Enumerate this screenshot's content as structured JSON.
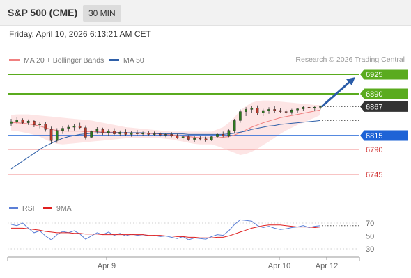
{
  "header": {
    "symbol": "S&P 500 (CME)",
    "interval": "30 MIN"
  },
  "datetime": "Friday, April 10, 2026 6:13:21 AM CET",
  "legend": {
    "ma20": "MA 20 + Bollinger Bands",
    "ma50": "MA 50",
    "ma20_color": "#f08080",
    "ma50_color": "#2e5fa8"
  },
  "copyright": "Research © 2026 Trading Central",
  "rsi_legend": {
    "rsi": "RSI",
    "ma9": "9MA",
    "rsi_color": "#5b7fd6",
    "ma9_color": "#e02020"
  },
  "levels": [
    {
      "value": 6925,
      "label": "6925",
      "type": "resistance",
      "color": "#5aab1e"
    },
    {
      "value": 6890,
      "label": "6890",
      "type": "resistance",
      "color": "#5aab1e"
    },
    {
      "value": 6867,
      "label": "6867",
      "type": "last-price",
      "color": "#333333"
    },
    {
      "value": 6815,
      "label": "6815",
      "type": "pivot",
      "color": "#1e63d6"
    },
    {
      "value": 6790,
      "label": "6790",
      "type": "support",
      "color": "#e05050"
    },
    {
      "value": 6745,
      "label": "6745",
      "type": "support",
      "color": "#e05050"
    }
  ],
  "rsi_axis": {
    "ticks": [
      70,
      50,
      30
    ],
    "labels": [
      "70",
      "50",
      "30"
    ]
  },
  "x_axis": {
    "labels": [
      "Apr 9",
      "Apr 10",
      "Apr 12"
    ]
  },
  "chart_data": {
    "type": "candlestick",
    "series": [
      {
        "name": "MA 20 + Bollinger Bands"
      },
      {
        "name": "MA 50"
      }
    ],
    "candles": [
      [
        6837,
        6845,
        6832,
        6840
      ],
      [
        6840,
        6848,
        6836,
        6843
      ],
      [
        6843,
        6846,
        6835,
        6838
      ],
      [
        6838,
        6844,
        6834,
        6841
      ],
      [
        6841,
        6843,
        6830,
        6834
      ],
      [
        6834,
        6840,
        6828,
        6836
      ],
      [
        6836,
        6839,
        6822,
        6826
      ],
      [
        6826,
        6831,
        6800,
        6806
      ],
      [
        6806,
        6828,
        6802,
        6824
      ],
      [
        6824,
        6832,
        6818,
        6828
      ],
      [
        6828,
        6834,
        6822,
        6830
      ],
      [
        6830,
        6836,
        6824,
        6832
      ],
      [
        6832,
        6838,
        6826,
        6829
      ],
      [
        6829,
        6833,
        6808,
        6812
      ],
      [
        6812,
        6824,
        6810,
        6822
      ],
      [
        6822,
        6830,
        6818,
        6826
      ],
      [
        6826,
        6829,
        6816,
        6820
      ],
      [
        6820,
        6826,
        6814,
        6823
      ],
      [
        6823,
        6828,
        6816,
        6818
      ],
      [
        6818,
        6824,
        6814,
        6821
      ],
      [
        6821,
        6826,
        6815,
        6817
      ],
      [
        6817,
        6823,
        6813,
        6820
      ],
      [
        6820,
        6825,
        6815,
        6818
      ],
      [
        6818,
        6822,
        6814,
        6819
      ],
      [
        6819,
        6823,
        6815,
        6817
      ],
      [
        6817,
        6822,
        6814,
        6818
      ],
      [
        6818,
        6821,
        6813,
        6816
      ],
      [
        6816,
        6820,
        6812,
        6817
      ],
      [
        6817,
        6821,
        6812,
        6815
      ],
      [
        6815,
        6818,
        6809,
        6811
      ],
      [
        6811,
        6816,
        6806,
        6813
      ],
      [
        6813,
        6816,
        6805,
        6808
      ],
      [
        6808,
        6814,
        6803,
        6810
      ],
      [
        6810,
        6815,
        6806,
        6809
      ],
      [
        6809,
        6813,
        6804,
        6807
      ],
      [
        6807,
        6815,
        6805,
        6813
      ],
      [
        6813,
        6820,
        6810,
        6817
      ],
      [
        6817,
        6822,
        6812,
        6815
      ],
      [
        6815,
        6826,
        6812,
        6824
      ],
      [
        6824,
        6845,
        6820,
        6842
      ],
      [
        6842,
        6862,
        6838,
        6858
      ],
      [
        6858,
        6866,
        6850,
        6862
      ],
      [
        6862,
        6868,
        6855,
        6864
      ],
      [
        6864,
        6869,
        6852,
        6856
      ],
      [
        6856,
        6863,
        6850,
        6860
      ],
      [
        6860,
        6866,
        6854,
        6862
      ],
      [
        6862,
        6868,
        6856,
        6860
      ],
      [
        6860,
        6864,
        6855,
        6858
      ],
      [
        6858,
        6862,
        6853,
        6857
      ],
      [
        6857,
        6863,
        6853,
        6861
      ],
      [
        6861,
        6865,
        6856,
        6863
      ],
      [
        6863,
        6868,
        6859,
        6866
      ],
      [
        6866,
        6869,
        6861,
        6864
      ],
      [
        6864,
        6868,
        6860,
        6866
      ],
      [
        6866,
        6869,
        6862,
        6867
      ]
    ],
    "rsi": [
      68,
      66,
      70,
      62,
      55,
      58,
      50,
      44,
      52,
      57,
      55,
      58,
      53,
      45,
      50,
      55,
      52,
      56,
      51,
      54,
      50,
      53,
      51,
      52,
      50,
      51,
      49,
      50,
      48,
      46,
      49,
      44,
      47,
      46,
      45,
      49,
      52,
      51,
      58,
      68,
      75,
      74,
      73,
      66,
      63,
      65,
      62,
      60,
      61,
      63,
      64,
      66,
      63,
      65,
      66
    ],
    "rsi_ma9": [
      62,
      62,
      62,
      61,
      60,
      59,
      57,
      56,
      55,
      55,
      55,
      54,
      54,
      53,
      53,
      53,
      52,
      52,
      52,
      52,
      52,
      52,
      52,
      52,
      51,
      51,
      51,
      50,
      50,
      49,
      49,
      48,
      48,
      47,
      47,
      47,
      48,
      48,
      50,
      53,
      56,
      59,
      62,
      64,
      66,
      67,
      67,
      67,
      66,
      65,
      64,
      64,
      64,
      63,
      64
    ],
    "ma50": [
      6755,
      6762,
      6769,
      6776,
      6783,
      6790,
      6796,
      6801,
      6806,
      6810,
      6813,
      6815,
      6817,
      6818,
      6819,
      6820,
      6820,
      6820,
      6820,
      6820,
      6820,
      6820,
      6820,
      6820,
      6819,
      6819,
      6818,
      6818,
      6818,
      6818,
      6818,
      6817,
      6817,
      6817,
      6817,
      6817,
      6817,
      6817,
      6818,
      6819,
      6821,
      6823,
      6826,
      6828,
      6830,
      6832,
      6833,
      6835,
      6836,
      6837,
      6838,
      6839,
      6840,
      6841,
      6842
    ],
    "ma20": [
      6838,
      6838,
      6837,
      6836,
      6834,
      6832,
      6829,
      6826,
      6824,
      6823,
      6823,
      6823,
      6823,
      6822,
      6822,
      6822,
      6821,
      6821,
      6821,
      6820,
      6820,
      6820,
      6819,
      6819,
      6819,
      6818,
      6818,
      6817,
      6816,
      6815,
      6814,
      6813,
      6812,
      6811,
      6811,
      6811,
      6811,
      6812,
      6813,
      6816,
      6820,
      6825,
      6830,
      6834,
      6838,
      6841,
      6844,
      6847,
      6849,
      6851,
      6853,
      6855,
      6857,
      6859,
      6861
    ],
    "bb_upper": [
      6852,
      6853,
      6853,
      6853,
      6852,
      6851,
      6850,
      6849,
      6848,
      6847,
      6846,
      6845,
      6844,
      6843,
      6842,
      6840,
      6838,
      6836,
      6834,
      6832,
      6830,
      6829,
      6828,
      6827,
      6826,
      6825,
      6824,
      6823,
      6822,
      6822,
      6822,
      6822,
      6822,
      6822,
      6822,
      6822,
      6826,
      6830,
      6838,
      6848,
      6860,
      6868,
      6874,
      6877,
      6878,
      6878,
      6877,
      6876,
      6875,
      6874,
      6873,
      6872,
      6871,
      6870,
      6870
    ],
    "bb_lower": [
      6824,
      6823,
      6821,
      6819,
      6816,
      6813,
      6808,
      6803,
      6800,
      6799,
      6800,
      6801,
      6802,
      6803,
      6804,
      6805,
      6806,
      6807,
      6808,
      6809,
      6810,
      6810,
      6810,
      6810,
      6810,
      6810,
      6810,
      6809,
      6808,
      6806,
      6804,
      6802,
      6800,
      6799,
      6799,
      6799,
      6796,
      6792,
      6788,
      6784,
      6780,
      6782,
      6786,
      6791,
      6798,
      6804,
      6811,
      6818,
      6824,
      6829,
      6834,
      6838,
      6843,
      6847,
      6852
    ],
    "projection": {
      "from": 6867,
      "to": 6925
    },
    "xlim_labels": [
      "Apr 9",
      "Apr 10",
      "Apr 12"
    ]
  }
}
